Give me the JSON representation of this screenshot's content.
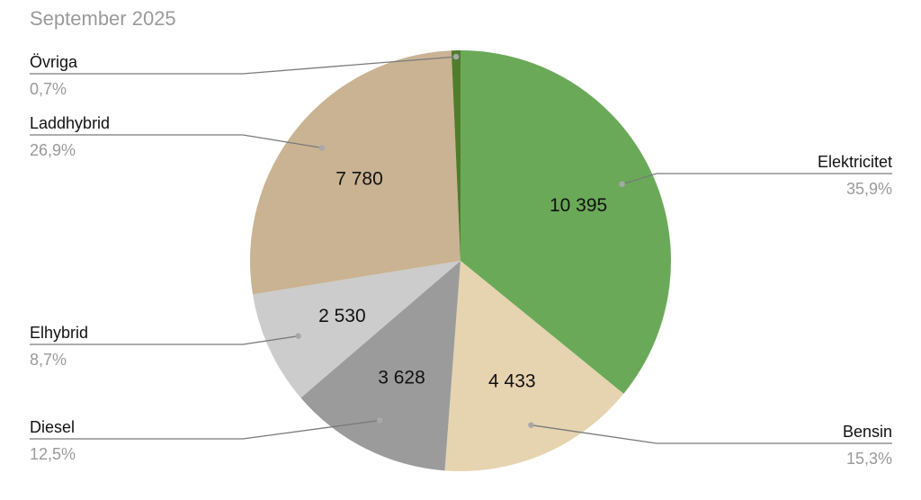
{
  "chart_data": {
    "type": "pie",
    "title": "September 2025",
    "slices": [
      {
        "name": "Elektricitet",
        "value": 10395,
        "value_label": "10 395",
        "percent_label": "35,9%",
        "color": "#6aa958"
      },
      {
        "name": "Bensin",
        "value": 4433,
        "value_label": "4 433",
        "percent_label": "15,3%",
        "color": "#e6d3b0"
      },
      {
        "name": "Diesel",
        "value": 3628,
        "value_label": "3 628",
        "percent_label": "12,5%",
        "color": "#9b9b9b"
      },
      {
        "name": "Elhybrid",
        "value": 2530,
        "value_label": "2 530",
        "percent_label": "8,7%",
        "color": "#cccccc"
      },
      {
        "name": "Laddhybrid",
        "value": 7780,
        "value_label": "7 780",
        "percent_label": "26,9%",
        "color": "#c9b393"
      },
      {
        "name": "Övriga",
        "value": 200,
        "value_label": "",
        "percent_label": "0,7%",
        "color": "#4f7d2b"
      }
    ],
    "start_angle": "12 o'clock",
    "direction": "clockwise",
    "legend": "none",
    "labels": "outside with leader lines"
  }
}
